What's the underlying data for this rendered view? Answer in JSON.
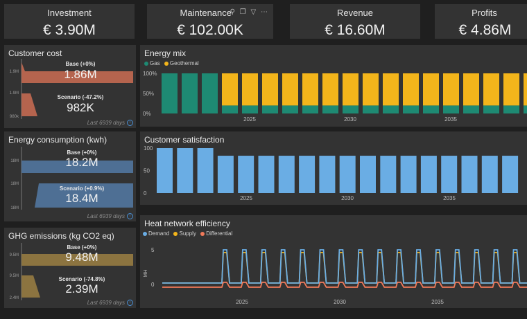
{
  "kpis": [
    {
      "title": "Investment",
      "value": "€ 3.90M"
    },
    {
      "title": "Maintenance",
      "value": "€ 102.00K"
    },
    {
      "title": "Revenue",
      "value": "€ 16.60M"
    },
    {
      "title": "Profits",
      "value": "€ 4.86M"
    }
  ],
  "toolbar_icons": [
    "pin-icon",
    "copy-icon",
    "filter-icon",
    "more-icon"
  ],
  "comparisons": [
    {
      "title": "Customer cost",
      "color": "#b5644e",
      "base_label": "Base (+0%)",
      "base_value": "1.86M",
      "scenario_label": "Scenario (-47.2%)",
      "scenario_value": "982K",
      "ticks": [
        "1.9M",
        "1.9M",
        "980k"
      ],
      "footer": "Last 6939 days"
    },
    {
      "title": "Energy consumption (kwh)",
      "color": "#4e6f94",
      "base_label": "Base (+0%)",
      "base_value": "18.2M",
      "scenario_label": "Scenario (+0.9%)",
      "scenario_value": "18.4M",
      "ticks": [
        "18M",
        "18M",
        "18M"
      ],
      "footer": "Last 6939 days"
    },
    {
      "title": "GHG emissions (kg CO2 eq)",
      "color": "#8c7440",
      "base_label": "Base (+0%)",
      "base_value": "9.48M",
      "scenario_label": "Scenario (-74.8%)",
      "scenario_value": "2.39M",
      "ticks": [
        "9.5M",
        "9.5M",
        "2.4M"
      ],
      "footer": "Last 6939 days"
    }
  ],
  "chart_data": [
    {
      "type": "bar",
      "title": "Energy mix",
      "stacked": true,
      "normalized": true,
      "x_ticks": [
        "2025",
        "2030",
        "2035"
      ],
      "y_ticks": [
        "100%",
        "50%",
        "0%"
      ],
      "legend_position": "top-left",
      "colors": {
        "Gas": "#1e8a73",
        "Geothermal": "#f3b51b"
      },
      "series": [
        {
          "name": "Gas",
          "values": [
            100,
            100,
            100,
            20,
            20,
            20,
            20,
            20,
            20,
            20,
            20,
            20,
            20,
            20,
            20,
            20,
            20,
            20,
            20
          ]
        },
        {
          "name": "Geothermal",
          "values": [
            0,
            0,
            0,
            80,
            80,
            80,
            80,
            80,
            80,
            80,
            80,
            80,
            80,
            80,
            80,
            80,
            80,
            80,
            80
          ]
        }
      ]
    },
    {
      "type": "bar",
      "title": "Customer satisfaction",
      "x_ticks": [
        "2025",
        "2030",
        "2035"
      ],
      "y_ticks": [
        "100",
        "50",
        "0"
      ],
      "ylim": [
        0,
        100
      ],
      "color": "#6aade4",
      "values": [
        100,
        100,
        100,
        83,
        83,
        83,
        83,
        83,
        83,
        83,
        83,
        83,
        83,
        83,
        83,
        83,
        83,
        83
      ]
    },
    {
      "type": "line",
      "title": "Heat network efficiency",
      "ylabel": "MH",
      "x_ticks": [
        "2025",
        "2030",
        "2035"
      ],
      "y_ticks": [
        "5",
        "0"
      ],
      "ylim": [
        -1,
        6
      ],
      "legend_position": "top-left",
      "cycles": 16,
      "series": [
        {
          "name": "Demand",
          "color": "#6aade4",
          "peak": 5,
          "trough": 0.2
        },
        {
          "name": "Supply",
          "color": "#f3b51b",
          "peak": 4.6,
          "trough": 0.2
        },
        {
          "name": "Differential",
          "color": "#f07a5a",
          "peak": 0.3,
          "trough": -0.4
        }
      ]
    }
  ]
}
